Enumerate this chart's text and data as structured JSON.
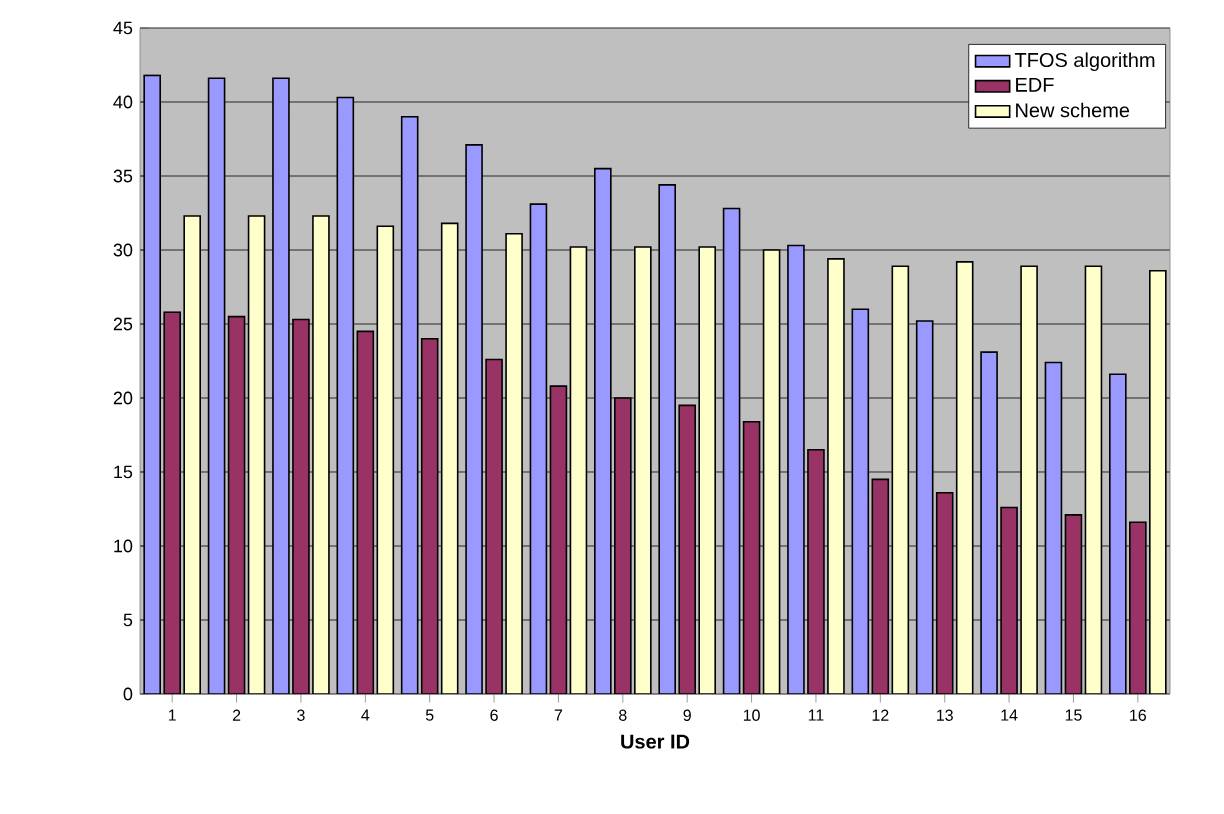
{
  "chart_data": {
    "type": "bar",
    "xlabel": "User ID",
    "categories": [
      "1",
      "2",
      "3",
      "4",
      "5",
      "6",
      "7",
      "8",
      "9",
      "10",
      "11",
      "12",
      "13",
      "14",
      "15",
      "16"
    ],
    "series": [
      {
        "name": "TFOS algorithm",
        "color": "#9999ff",
        "values": [
          41.8,
          41.6,
          41.6,
          40.3,
          39,
          37.1,
          33.1,
          35.5,
          34.4,
          32.8,
          30.3,
          26,
          25.2,
          23.1,
          22.4,
          21.6
        ]
      },
      {
        "name": "EDF",
        "color": "#993366",
        "values": [
          25.8,
          25.5,
          25.3,
          24.5,
          24,
          22.6,
          20.8,
          20,
          19.5,
          18.4,
          16.5,
          14.5,
          13.6,
          12.6,
          12.1,
          11.6
        ]
      },
      {
        "name": "New scheme",
        "color": "#ffffcc",
        "values": [
          32.3,
          32.3,
          32.3,
          31.6,
          31.8,
          31.1,
          30.2,
          30.2,
          30.2,
          30,
          29.4,
          28.9,
          29.2,
          28.9,
          28.9,
          28.6
        ]
      }
    ],
    "ylim": [
      0,
      45
    ],
    "yticks": [
      0,
      5,
      10,
      15,
      20,
      25,
      30,
      35,
      40,
      45
    ],
    "grid": "y",
    "legend": "top right"
  }
}
